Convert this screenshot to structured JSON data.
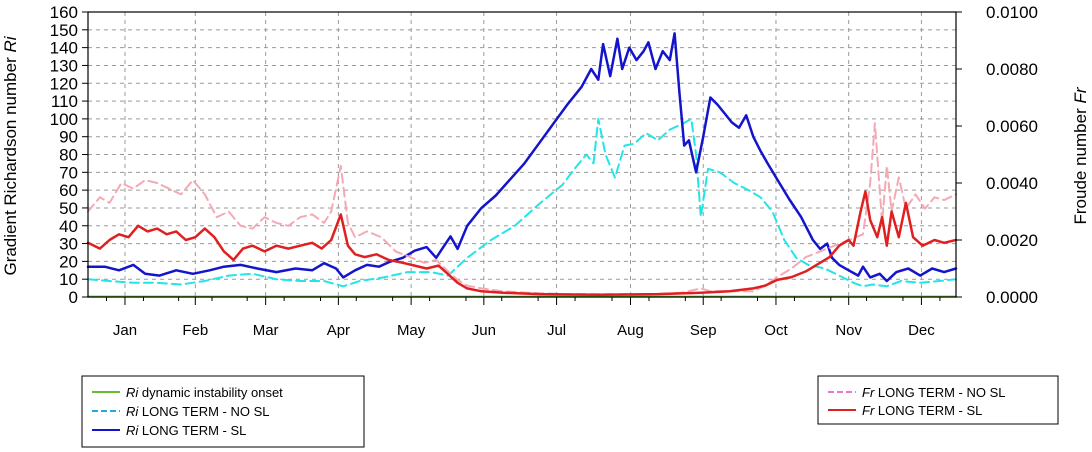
{
  "chart_data": {
    "type": "line",
    "ylabel_left": {
      "text": "Gradient Richardson number ",
      "sym": "Ri"
    },
    "ylabel_right": {
      "text": "Froude number ",
      "sym": "Fr"
    },
    "ylim_left": [
      0,
      160
    ],
    "ylim_right": [
      0,
      0.01
    ],
    "yticks_left": [
      "0",
      "10",
      "20",
      "30",
      "40",
      "50",
      "60",
      "70",
      "80",
      "90",
      "100",
      "110",
      "120",
      "130",
      "140",
      "150",
      "160"
    ],
    "yticks_right": [
      "0.0000",
      "0.0020",
      "0.0040",
      "0.0060",
      "0.0080",
      "0.0100"
    ],
    "months": [
      "Jan",
      "Feb",
      "Mar",
      "Apr",
      "May",
      "Jun",
      "Jul",
      "Aug",
      "Sep",
      "Oct",
      "Nov",
      "Dec"
    ],
    "x_unit": "day of year",
    "xlim": [
      1,
      365
    ],
    "grid": true,
    "colors": {
      "ri_onset": "#66bb33",
      "ri_no_sl": "#22e5e5",
      "ri_sl": "#1414cc",
      "fr_no_sl": "#f4a9b5",
      "fr_sl": "#e02020"
    },
    "legend_left": [
      {
        "sym": "Ri",
        "text": " dynamic instability onset",
        "color": "#66bb33",
        "dash": false
      },
      {
        "sym": "Ri",
        "text": "  LONG TERM - NO SL",
        "color": "#22aadd",
        "dash": true
      },
      {
        "sym": "Ri",
        "text": "  LONG TERM - SL",
        "color": "#1414cc",
        "dash": false
      }
    ],
    "legend_right": [
      {
        "sym": "Fr",
        "text": "  LONG TERM - NO SL",
        "color": "#ee77cc",
        "dash": true
      },
      {
        "sym": "Fr",
        "text": "  LONG TERM - SL",
        "color": "#e02020",
        "dash": false
      }
    ],
    "series": [
      {
        "key": "ri_onset",
        "axis": "left",
        "dash": false,
        "width": 2,
        "points": [
          [
            1,
            0.25
          ],
          [
            365,
            0.25
          ]
        ]
      },
      {
        "key": "ri_no_sl",
        "axis": "left",
        "dash": true,
        "width": 2,
        "points": [
          [
            1,
            10
          ],
          [
            10,
            9
          ],
          [
            20,
            8
          ],
          [
            30,
            8
          ],
          [
            40,
            7
          ],
          [
            50,
            9
          ],
          [
            60,
            12
          ],
          [
            70,
            13
          ],
          [
            80,
            10
          ],
          [
            90,
            9
          ],
          [
            100,
            9
          ],
          [
            108,
            6
          ],
          [
            115,
            9
          ],
          [
            125,
            11
          ],
          [
            135,
            14
          ],
          [
            145,
            14
          ],
          [
            152,
            12
          ],
          [
            160,
            22
          ],
          [
            170,
            32
          ],
          [
            180,
            40
          ],
          [
            190,
            52
          ],
          [
            200,
            63
          ],
          [
            205,
            72
          ],
          [
            210,
            80
          ],
          [
            213,
            75
          ],
          [
            215,
            100
          ],
          [
            218,
            80
          ],
          [
            222,
            67
          ],
          [
            226,
            85
          ],
          [
            230,
            86
          ],
          [
            235,
            92
          ],
          [
            240,
            88
          ],
          [
            245,
            94
          ],
          [
            250,
            97
          ],
          [
            254,
            100
          ],
          [
            256,
            80
          ],
          [
            258,
            45
          ],
          [
            261,
            72
          ],
          [
            266,
            70
          ],
          [
            272,
            64
          ],
          [
            278,
            60
          ],
          [
            283,
            56
          ],
          [
            288,
            48
          ],
          [
            293,
            32
          ],
          [
            298,
            22
          ],
          [
            303,
            18
          ],
          [
            310,
            16
          ],
          [
            316,
            12
          ],
          [
            322,
            8
          ],
          [
            326,
            6
          ],
          [
            330,
            7
          ],
          [
            336,
            6
          ],
          [
            342,
            9
          ],
          [
            350,
            8
          ],
          [
            358,
            9
          ],
          [
            365,
            10
          ]
        ]
      },
      {
        "key": "ri_sl",
        "axis": "left",
        "dash": false,
        "width": 2.5,
        "points": [
          [
            1,
            17
          ],
          [
            8,
            17
          ],
          [
            14,
            15
          ],
          [
            20,
            18
          ],
          [
            25,
            13
          ],
          [
            31,
            12
          ],
          [
            38,
            15
          ],
          [
            45,
            13
          ],
          [
            52,
            15
          ],
          [
            58,
            17
          ],
          [
            65,
            18
          ],
          [
            72,
            16
          ],
          [
            80,
            14
          ],
          [
            88,
            16
          ],
          [
            95,
            15
          ],
          [
            100,
            19
          ],
          [
            105,
            16
          ],
          [
            108,
            11
          ],
          [
            113,
            15
          ],
          [
            118,
            18
          ],
          [
            123,
            17
          ],
          [
            128,
            20
          ],
          [
            133,
            22
          ],
          [
            138,
            26
          ],
          [
            143,
            28
          ],
          [
            147,
            22
          ],
          [
            150,
            28
          ],
          [
            153,
            34
          ],
          [
            156,
            27
          ],
          [
            160,
            40
          ],
          [
            166,
            50
          ],
          [
            172,
            57
          ],
          [
            178,
            66
          ],
          [
            184,
            75
          ],
          [
            190,
            86
          ],
          [
            196,
            97
          ],
          [
            202,
            108
          ],
          [
            208,
            118
          ],
          [
            212,
            128
          ],
          [
            215,
            122
          ],
          [
            217,
            142
          ],
          [
            220,
            124
          ],
          [
            223,
            145
          ],
          [
            225,
            128
          ],
          [
            228,
            140
          ],
          [
            231,
            133
          ],
          [
            234,
            138
          ],
          [
            236,
            143
          ],
          [
            239,
            128
          ],
          [
            242,
            138
          ],
          [
            245,
            133
          ],
          [
            247,
            148
          ],
          [
            249,
            115
          ],
          [
            251,
            85
          ],
          [
            253,
            88
          ],
          [
            256,
            70
          ],
          [
            259,
            90
          ],
          [
            262,
            112
          ],
          [
            265,
            108
          ],
          [
            268,
            103
          ],
          [
            271,
            98
          ],
          [
            274,
            95
          ],
          [
            277,
            102
          ],
          [
            280,
            90
          ],
          [
            283,
            82
          ],
          [
            286,
            75
          ],
          [
            290,
            66
          ],
          [
            295,
            55
          ],
          [
            300,
            45
          ],
          [
            305,
            32
          ],
          [
            308,
            27
          ],
          [
            311,
            30
          ],
          [
            313,
            22
          ],
          [
            316,
            18
          ],
          [
            320,
            15
          ],
          [
            324,
            12
          ],
          [
            326,
            17
          ],
          [
            329,
            11
          ],
          [
            333,
            13
          ],
          [
            336,
            9
          ],
          [
            340,
            14
          ],
          [
            345,
            16
          ],
          [
            350,
            12
          ],
          [
            355,
            16
          ],
          [
            360,
            14
          ],
          [
            365,
            16
          ]
        ]
      },
      {
        "key": "fr_no_sl",
        "axis": "right",
        "dash": true,
        "width": 2,
        "points": [
          [
            1,
            0.003
          ],
          [
            6,
            0.0035
          ],
          [
            10,
            0.0033
          ],
          [
            15,
            0.004
          ],
          [
            20,
            0.0038
          ],
          [
            25,
            0.0041
          ],
          [
            30,
            0.004
          ],
          [
            35,
            0.0038
          ],
          [
            40,
            0.0036
          ],
          [
            45,
            0.0041
          ],
          [
            50,
            0.0036
          ],
          [
            55,
            0.0028
          ],
          [
            60,
            0.003
          ],
          [
            65,
            0.0025
          ],
          [
            70,
            0.0024
          ],
          [
            75,
            0.0028
          ],
          [
            80,
            0.0026
          ],
          [
            85,
            0.0025
          ],
          [
            90,
            0.0028
          ],
          [
            95,
            0.0029
          ],
          [
            100,
            0.0026
          ],
          [
            103,
            0.003
          ],
          [
            107,
            0.0046
          ],
          [
            110,
            0.0026
          ],
          [
            113,
            0.0021
          ],
          [
            118,
            0.0023
          ],
          [
            124,
            0.0021
          ],
          [
            130,
            0.0016
          ],
          [
            136,
            0.0014
          ],
          [
            142,
            0.0012
          ],
          [
            147,
            0.0013
          ],
          [
            152,
            0.0009
          ],
          [
            156,
            0.0006
          ],
          [
            160,
            0.0004
          ],
          [
            166,
            0.0003
          ],
          [
            175,
            0.0002
          ],
          [
            185,
            0.00015
          ],
          [
            200,
            0.0001
          ],
          [
            220,
            0.0001
          ],
          [
            240,
            0.0001
          ],
          [
            250,
            0.00015
          ],
          [
            258,
            0.0003
          ],
          [
            262,
            0.0002
          ],
          [
            270,
            0.0002
          ],
          [
            280,
            0.0002
          ],
          [
            285,
            0.0004
          ],
          [
            290,
            0.0007
          ],
          [
            296,
            0.001
          ],
          [
            302,
            0.0014
          ],
          [
            308,
            0.0016
          ],
          [
            314,
            0.0018
          ],
          [
            320,
            0.002
          ],
          [
            326,
            0.0022
          ],
          [
            329,
            0.004
          ],
          [
            331,
            0.0061
          ],
          [
            334,
            0.0026
          ],
          [
            336,
            0.0046
          ],
          [
            338,
            0.003
          ],
          [
            341,
            0.0042
          ],
          [
            344,
            0.0031
          ],
          [
            348,
            0.0036
          ],
          [
            352,
            0.0031
          ],
          [
            356,
            0.0035
          ],
          [
            360,
            0.0034
          ],
          [
            365,
            0.0036
          ]
        ]
      },
      {
        "key": "fr_sl",
        "axis": "right",
        "dash": false,
        "width": 2.5,
        "points": [
          [
            1,
            0.0019
          ],
          [
            6,
            0.0017
          ],
          [
            10,
            0.002
          ],
          [
            14,
            0.0022
          ],
          [
            18,
            0.0021
          ],
          [
            22,
            0.0025
          ],
          [
            26,
            0.0023
          ],
          [
            30,
            0.0024
          ],
          [
            34,
            0.0022
          ],
          [
            38,
            0.0023
          ],
          [
            42,
            0.002
          ],
          [
            46,
            0.0021
          ],
          [
            50,
            0.0024
          ],
          [
            54,
            0.0021
          ],
          [
            58,
            0.0016
          ],
          [
            62,
            0.0013
          ],
          [
            66,
            0.0017
          ],
          [
            70,
            0.0018
          ],
          [
            75,
            0.0016
          ],
          [
            80,
            0.0018
          ],
          [
            85,
            0.0017
          ],
          [
            90,
            0.0018
          ],
          [
            95,
            0.0019
          ],
          [
            99,
            0.0017
          ],
          [
            103,
            0.002
          ],
          [
            107,
            0.0029
          ],
          [
            110,
            0.0018
          ],
          [
            113,
            0.0015
          ],
          [
            117,
            0.0014
          ],
          [
            122,
            0.0015
          ],
          [
            127,
            0.0013
          ],
          [
            133,
            0.0012
          ],
          [
            138,
            0.0011
          ],
          [
            143,
            0.001
          ],
          [
            148,
            0.0011
          ],
          [
            152,
            0.0008
          ],
          [
            156,
            0.0005
          ],
          [
            160,
            0.0003
          ],
          [
            166,
            0.0002
          ],
          [
            175,
            0.00015
          ],
          [
            190,
            0.0001
          ],
          [
            215,
            8e-05
          ],
          [
            240,
            0.0001
          ],
          [
            258,
            0.00015
          ],
          [
            270,
            0.0002
          ],
          [
            280,
            0.0003
          ],
          [
            285,
            0.0004
          ],
          [
            290,
            0.0006
          ],
          [
            296,
            0.0007
          ],
          [
            302,
            0.0009
          ],
          [
            308,
            0.0012
          ],
          [
            312,
            0.0014
          ],
          [
            316,
            0.0018
          ],
          [
            320,
            0.002
          ],
          [
            322,
            0.0018
          ],
          [
            325,
            0.003
          ],
          [
            327,
            0.0037
          ],
          [
            329,
            0.0027
          ],
          [
            332,
            0.0021
          ],
          [
            334,
            0.0028
          ],
          [
            336,
            0.0018
          ],
          [
            338,
            0.003
          ],
          [
            341,
            0.0021
          ],
          [
            344,
            0.0033
          ],
          [
            347,
            0.0021
          ],
          [
            351,
            0.0018
          ],
          [
            356,
            0.002
          ],
          [
            360,
            0.0019
          ],
          [
            365,
            0.002
          ]
        ]
      }
    ]
  }
}
